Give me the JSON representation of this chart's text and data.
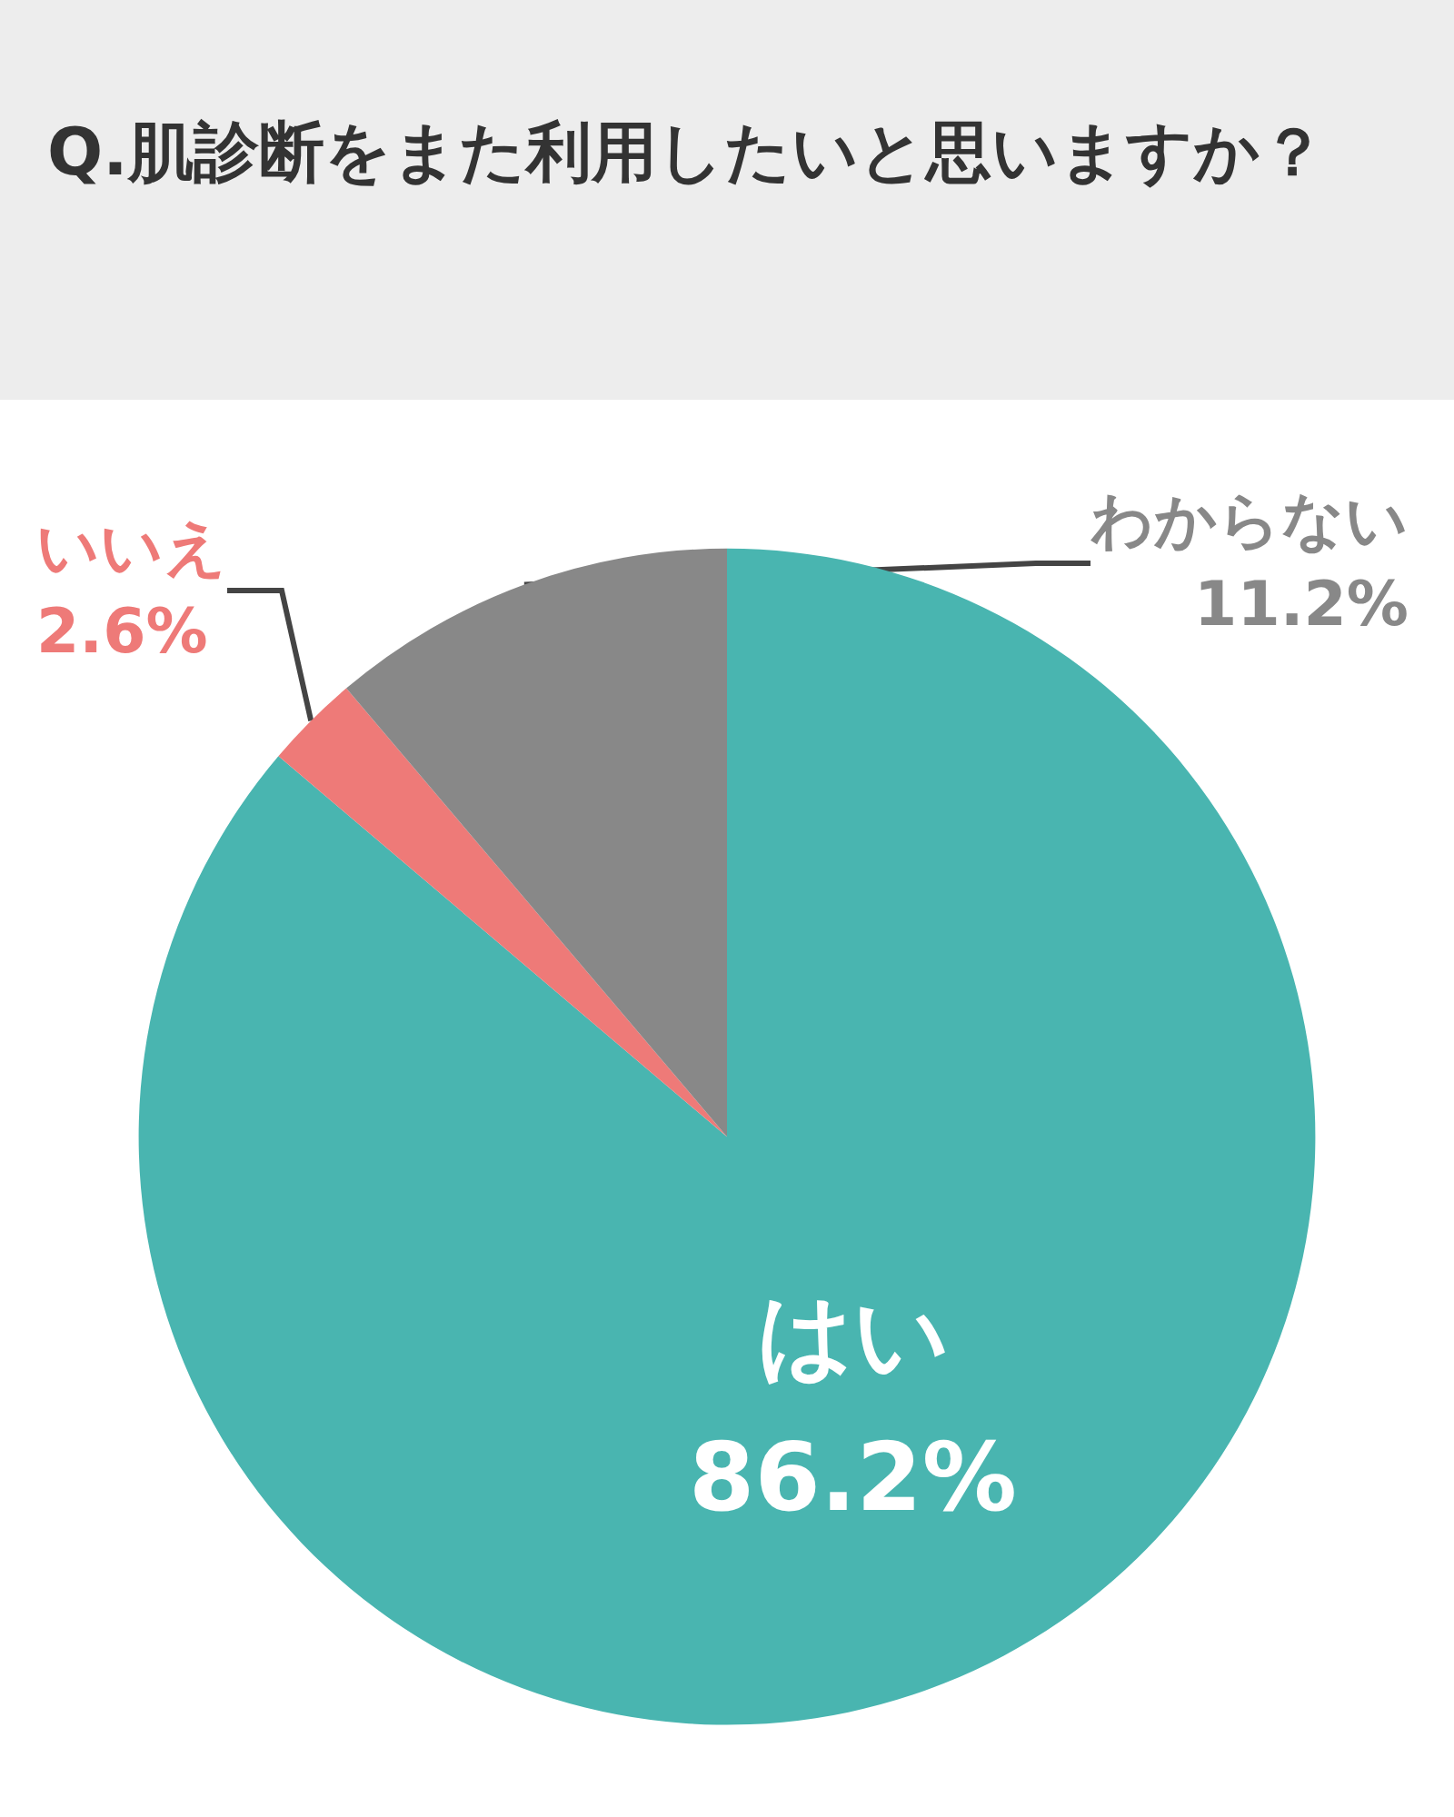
{
  "chart_data": {
    "type": "pie",
    "title": "Q.肌診断をまた利用したいと思いますか？",
    "categories": [
      "はい",
      "いいえ",
      "わからない"
    ],
    "values": [
      86.2,
      2.6,
      11.2
    ],
    "colors": [
      "#49b5b0",
      "#ee7a78",
      "#888888"
    ],
    "value_labels": [
      "86.2%",
      "2.6%",
      "11.2%"
    ],
    "legend": false
  }
}
